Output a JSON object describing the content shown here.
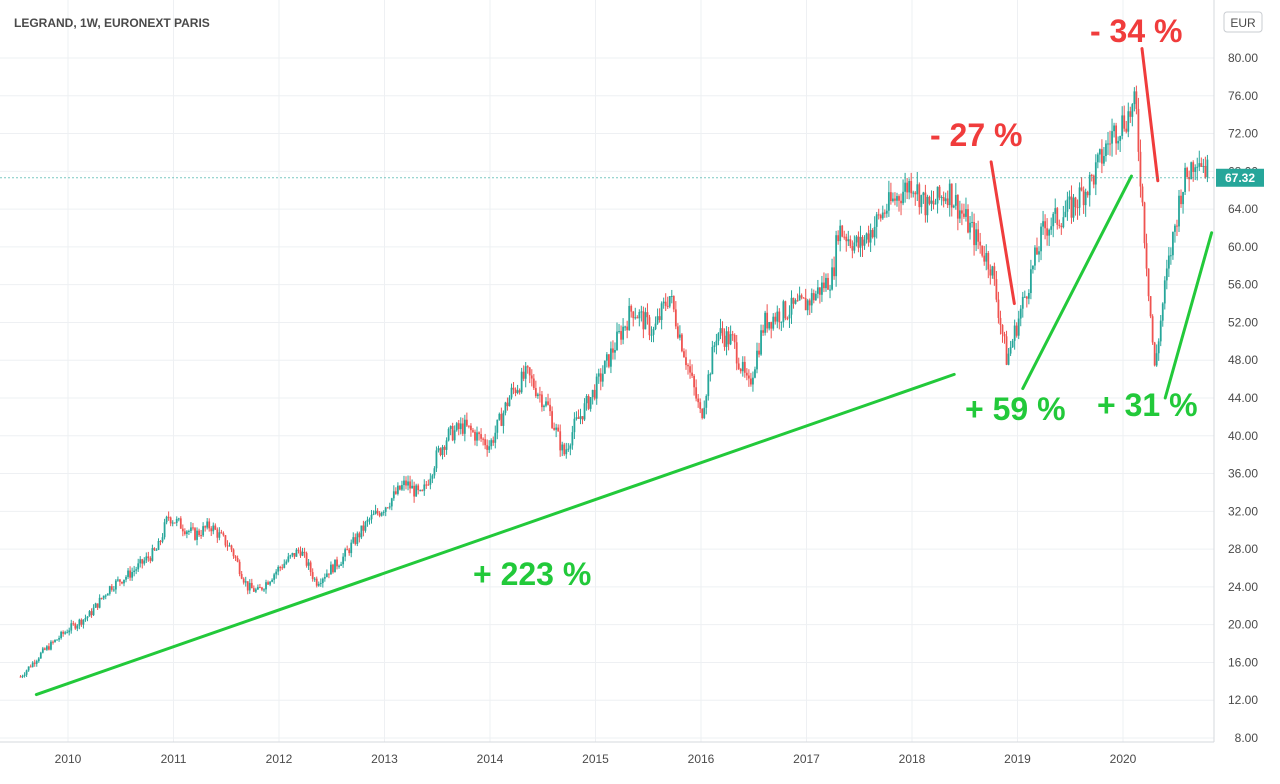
{
  "chart_data": {
    "type": "candlestick",
    "title": "LEGRAND, 1W, EURONEXT PARIS",
    "currency": "EUR",
    "last_price": "67.32",
    "ylim": [
      8,
      82
    ],
    "y_ticks": [
      "80.00",
      "76.00",
      "72.00",
      "68.00",
      "64.00",
      "60.00",
      "56.00",
      "52.00",
      "48.00",
      "44.00",
      "40.00",
      "36.00",
      "32.00",
      "28.00",
      "24.00",
      "20.00",
      "16.00",
      "12.00",
      "8.00"
    ],
    "x_ticks": [
      "2010",
      "2011",
      "2012",
      "2013",
      "2014",
      "2015",
      "2016",
      "2017",
      "2018",
      "2019",
      "2020"
    ],
    "grid": true,
    "series": [
      {
        "x": [
          2009.55,
          2009.75,
          2010.0,
          2010.2,
          2010.4,
          2010.6,
          2010.85,
          2010.95,
          2011.2,
          2011.35,
          2011.55,
          2011.7,
          2011.8,
          2012.0,
          2012.2,
          2012.35,
          2012.6,
          2012.85,
          2013.0,
          2013.2,
          2013.35,
          2013.5,
          2013.6,
          2013.75,
          2014.0,
          2014.2,
          2014.35,
          2014.55,
          2014.7,
          2014.8,
          2015.0,
          2015.2,
          2015.35,
          2015.55,
          2015.7,
          2016.0,
          2016.15,
          2016.3,
          2016.45,
          2016.6,
          2016.75,
          2017.0,
          2017.25,
          2017.3,
          2017.5,
          2017.75,
          2018.0,
          2018.15,
          2018.35,
          2018.55,
          2018.75,
          2018.9,
          2019.05,
          2019.25,
          2019.5,
          2019.7,
          2019.9,
          2020.05,
          2020.12,
          2020.2,
          2020.3,
          2020.4,
          2020.55,
          2020.7,
          2020.8
        ],
        "values": [
          14.5,
          17,
          19.5,
          21,
          24,
          25.5,
          28,
          31.5,
          29.5,
          30.5,
          28,
          24,
          23.5,
          26,
          28,
          24.5,
          27,
          31,
          32.5,
          35,
          33.5,
          38,
          40,
          41,
          39,
          44.5,
          46.5,
          43,
          38,
          41,
          45,
          50,
          53.5,
          51,
          55,
          42,
          51,
          50,
          45,
          52,
          53,
          54,
          57,
          62,
          60,
          64,
          67,
          64,
          66,
          62,
          58,
          48,
          54,
          62,
          64,
          67,
          72,
          74,
          75,
          62,
          47,
          56,
          66,
          70,
          68
        ]
      }
    ],
    "annotations": [
      {
        "text": "+ 223 %",
        "color": "#22c93a"
      },
      {
        "text": "- 27 %",
        "color": "#f03c3c"
      },
      {
        "text": "- 34 %",
        "color": "#f03c3c"
      },
      {
        "text": "+ 59 %",
        "color": "#22c93a"
      },
      {
        "text": "+ 31 %",
        "color": "#22c93a"
      }
    ],
    "colors": {
      "up": "#26a69a",
      "down": "#ef5350",
      "price_line": "#26a69a"
    }
  }
}
